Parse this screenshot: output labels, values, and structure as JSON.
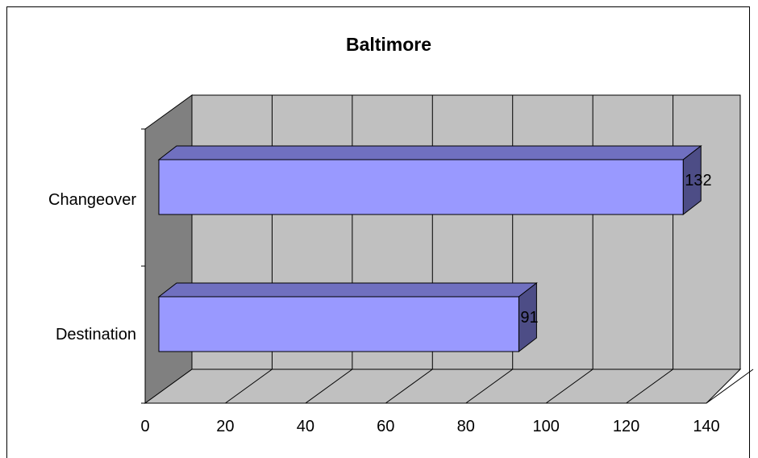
{
  "chart_data": {
    "type": "bar",
    "orientation": "horizontal",
    "three_d": true,
    "title": "Baltimore",
    "categories": [
      "Changeover",
      "Destination"
    ],
    "values": [
      132,
      91
    ],
    "data_labels": [
      "132",
      "91"
    ],
    "xlim": [
      0,
      140
    ],
    "xticks": [
      "0",
      "20",
      "40",
      "60",
      "80",
      "100",
      "120",
      "140"
    ],
    "grid": true,
    "legend": "none",
    "colors": {
      "bar_front": "#9999ff",
      "bar_top": "#7070c0",
      "bar_side": "#4d4d86",
      "wall": "#c0c0c0",
      "side_wall": "#808080",
      "floor": "#c0c0c0"
    }
  }
}
